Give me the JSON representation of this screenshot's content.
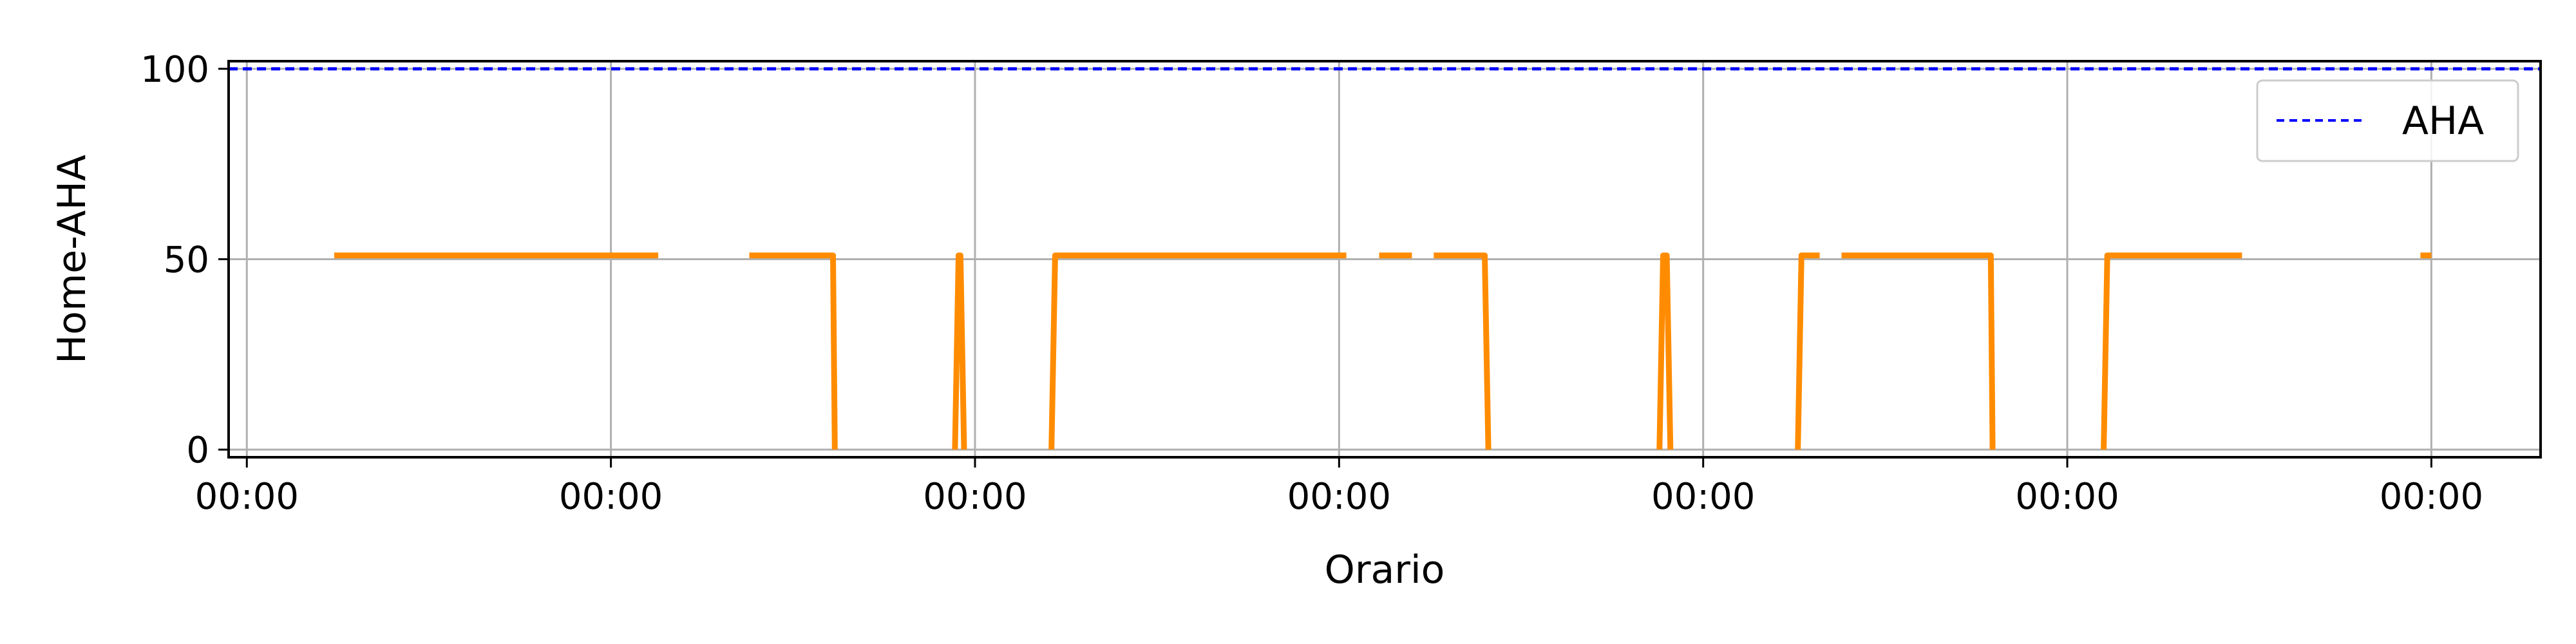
{
  "chart_data": {
    "type": "line",
    "xlabel": "Orario",
    "ylabel": "Home-AHA",
    "ylim": [
      -2,
      102
    ],
    "xlim": [
      -0.05,
      6.3
    ],
    "x_tick_positions": [
      0,
      1,
      2,
      3,
      4,
      5,
      6
    ],
    "x_tick_labels": [
      "00:00",
      "00:00",
      "00:00",
      "00:00",
      "00:00",
      "00:00",
      "00:00"
    ],
    "y_ticks": [
      0,
      50,
      100
    ],
    "grid": true,
    "legend": {
      "placement": "top-right",
      "entries": [
        "AHA"
      ]
    },
    "reference_line": {
      "name": "AHA",
      "value": 100,
      "color": "#0000ff",
      "style": "dashed"
    },
    "series": [
      {
        "color": "#ff8c00",
        "segments": [
          [
            [
              0.24,
              51
            ],
            [
              1.13,
              51
            ]
          ],
          [
            [
              1.38,
              51
            ],
            [
              1.61,
              51
            ],
            [
              1.615,
              0
            ]
          ],
          [
            [
              1.945,
              0
            ],
            [
              1.955,
              51
            ],
            [
              1.96,
              51
            ],
            [
              1.97,
              0
            ]
          ],
          [
            [
              2.21,
              0
            ],
            [
              2.22,
              51
            ],
            [
              3.02,
              51
            ]
          ],
          [
            [
              3.11,
              51
            ],
            [
              3.2,
              51
            ]
          ],
          [
            [
              3.26,
              51
            ],
            [
              3.4,
              51
            ],
            [
              3.41,
              0
            ]
          ],
          [
            [
              3.88,
              0
            ],
            [
              3.89,
              51
            ],
            [
              3.9,
              51
            ],
            [
              3.91,
              0
            ]
          ],
          [
            [
              4.26,
              0
            ],
            [
              4.27,
              51
            ],
            [
              4.32,
              51
            ]
          ],
          [
            [
              4.38,
              51
            ],
            [
              4.79,
              51
            ],
            [
              4.795,
              0
            ]
          ],
          [
            [
              5.1,
              0
            ],
            [
              5.11,
              51
            ],
            [
              5.48,
              51
            ]
          ],
          [
            [
              5.97,
              51
            ],
            [
              6.0,
              51
            ]
          ]
        ]
      }
    ],
    "colors": {
      "grid": "#b0b0b0",
      "axes": "#000000"
    }
  }
}
